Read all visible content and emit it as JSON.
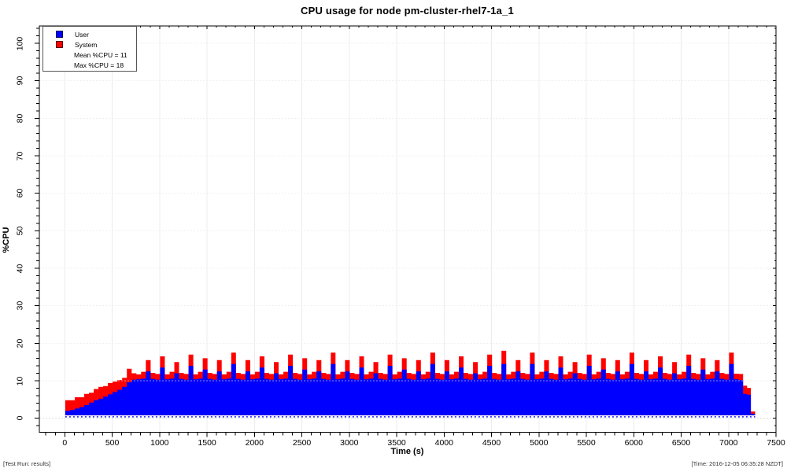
{
  "header": {
    "title": "CPU usage for node pm-cluster-rhel7-1a_1"
  },
  "legend": {
    "items": [
      {
        "label": "User",
        "color": "#0000ff"
      },
      {
        "label": "System",
        "color": "#ff0000"
      }
    ],
    "stats": [
      {
        "label": "Mean %CPU = 11"
      },
      {
        "label": "Max %CPU = 18"
      }
    ]
  },
  "footer": {
    "left": "[Test Run: results]",
    "right": "[Time: 2016-12-05 06:35:28 NZDT]"
  },
  "chart_data": {
    "type": "area",
    "stacked": true,
    "title": "CPU usage for node pm-cluster-rhel7-1a_1",
    "xlabel": "Time (s)",
    "ylabel": "%CPU",
    "xlim": [
      0,
      7500
    ],
    "ylim": [
      0,
      100
    ],
    "xticks": [
      0,
      500,
      1000,
      1500,
      2000,
      2500,
      3000,
      3500,
      4000,
      4500,
      5000,
      5500,
      6000,
      6500,
      7000,
      7500
    ],
    "yticks": [
      0,
      10,
      20,
      30,
      40,
      50,
      60,
      70,
      80,
      90,
      100
    ],
    "x_minor_step": 100,
    "y_minor_step": 2,
    "grid": true,
    "legend_position": "top-left",
    "mean_pct_cpu": 11,
    "max_pct_cpu": 18,
    "colors": {
      "user": "#0000ff",
      "system": "#ff0000",
      "grid": "#dddddd",
      "border": "#000000"
    },
    "series": [
      {
        "name": "User",
        "color": "#0000ff"
      },
      {
        "name": "System",
        "color": "#ff0000"
      }
    ],
    "points_format": [
      "time_s",
      "user_pct",
      "system_pct"
    ],
    "points": [
      [
        30,
        2,
        2.8
      ],
      [
        80,
        2.2,
        2.6
      ],
      [
        130,
        2.6,
        3
      ],
      [
        180,
        3,
        2.6
      ],
      [
        230,
        3.5,
        3
      ],
      [
        280,
        4.2,
        2.6
      ],
      [
        330,
        4.8,
        3
      ],
      [
        380,
        5.2,
        3.2
      ],
      [
        430,
        5.8,
        2.8
      ],
      [
        480,
        6.4,
        3
      ],
      [
        530,
        7,
        2.8
      ],
      [
        580,
        7.6,
        2.6
      ],
      [
        630,
        8.4,
        2.4
      ],
      [
        680,
        9.6,
        3.6
      ],
      [
        730,
        10.3,
        1.7
      ],
      [
        780,
        10.4,
        1.3
      ],
      [
        830,
        10.6,
        1.8
      ],
      [
        880,
        12.5,
        3
      ],
      [
        930,
        10.5,
        1.6
      ],
      [
        980,
        10.3,
        1.5
      ],
      [
        1030,
        13.5,
        3
      ],
      [
        1080,
        10.4,
        1.3
      ],
      [
        1130,
        10.6,
        1.8
      ],
      [
        1180,
        12,
        3
      ],
      [
        1230,
        10.5,
        1.6
      ],
      [
        1280,
        10.3,
        1.5
      ],
      [
        1330,
        14,
        3
      ],
      [
        1380,
        10.4,
        1.3
      ],
      [
        1430,
        10.6,
        1.8
      ],
      [
        1480,
        13,
        3
      ],
      [
        1530,
        10.5,
        1.6
      ],
      [
        1580,
        10.3,
        1.5
      ],
      [
        1630,
        12.5,
        3
      ],
      [
        1680,
        10.4,
        1.3
      ],
      [
        1730,
        10.6,
        1.8
      ],
      [
        1780,
        14.5,
        3
      ],
      [
        1830,
        10.5,
        1.6
      ],
      [
        1880,
        10.3,
        1.5
      ],
      [
        1930,
        12.5,
        3
      ],
      [
        1980,
        10.4,
        1.3
      ],
      [
        2030,
        10.6,
        1.8
      ],
      [
        2080,
        13.5,
        3
      ],
      [
        2130,
        10.5,
        1.6
      ],
      [
        2180,
        10.3,
        1.5
      ],
      [
        2230,
        12,
        3
      ],
      [
        2280,
        10.4,
        1.3
      ],
      [
        2330,
        10.6,
        1.8
      ],
      [
        2380,
        14,
        3
      ],
      [
        2430,
        10.5,
        1.6
      ],
      [
        2480,
        10.3,
        1.5
      ],
      [
        2530,
        13,
        3
      ],
      [
        2580,
        10.4,
        1.3
      ],
      [
        2630,
        10.6,
        1.8
      ],
      [
        2680,
        12.5,
        3
      ],
      [
        2730,
        10.5,
        1.6
      ],
      [
        2780,
        10.3,
        1.5
      ],
      [
        2830,
        14.5,
        3
      ],
      [
        2880,
        10.4,
        1.3
      ],
      [
        2930,
        10.6,
        1.8
      ],
      [
        2980,
        12.5,
        3
      ],
      [
        3030,
        10.5,
        1.6
      ],
      [
        3080,
        10.3,
        1.5
      ],
      [
        3130,
        13.5,
        3
      ],
      [
        3180,
        10.4,
        1.3
      ],
      [
        3230,
        10.6,
        1.8
      ],
      [
        3280,
        12,
        3
      ],
      [
        3330,
        10.5,
        1.6
      ],
      [
        3380,
        10.3,
        1.5
      ],
      [
        3430,
        14,
        3
      ],
      [
        3480,
        10.4,
        1.3
      ],
      [
        3530,
        10.6,
        1.8
      ],
      [
        3580,
        13,
        3
      ],
      [
        3630,
        10.5,
        1.6
      ],
      [
        3680,
        10.3,
        1.5
      ],
      [
        3730,
        12.5,
        3
      ],
      [
        3780,
        10.4,
        1.3
      ],
      [
        3830,
        10.6,
        1.8
      ],
      [
        3880,
        14.5,
        3
      ],
      [
        3930,
        10.5,
        1.6
      ],
      [
        3980,
        10.3,
        1.5
      ],
      [
        4030,
        12.5,
        3
      ],
      [
        4080,
        10.4,
        1.3
      ],
      [
        4130,
        10.6,
        1.8
      ],
      [
        4180,
        13.5,
        3
      ],
      [
        4230,
        10.5,
        1.6
      ],
      [
        4280,
        10.3,
        1.5
      ],
      [
        4330,
        12,
        3
      ],
      [
        4380,
        10.4,
        1.3
      ],
      [
        4430,
        10.6,
        1.8
      ],
      [
        4480,
        14,
        3
      ],
      [
        4530,
        10.5,
        1.6
      ],
      [
        4580,
        10.3,
        1.5
      ],
      [
        4630,
        14.5,
        3.5
      ],
      [
        4680,
        10.4,
        1.3
      ],
      [
        4730,
        10.6,
        1.8
      ],
      [
        4780,
        12.5,
        3
      ],
      [
        4830,
        10.5,
        1.6
      ],
      [
        4880,
        10.3,
        1.5
      ],
      [
        4930,
        14.5,
        3
      ],
      [
        4980,
        10.4,
        1.3
      ],
      [
        5030,
        10.6,
        1.8
      ],
      [
        5080,
        12.5,
        3
      ],
      [
        5130,
        10.5,
        1.6
      ],
      [
        5180,
        10.3,
        1.5
      ],
      [
        5230,
        13.5,
        3
      ],
      [
        5280,
        10.4,
        1.3
      ],
      [
        5330,
        10.6,
        1.8
      ],
      [
        5380,
        12,
        3
      ],
      [
        5430,
        10.5,
        1.6
      ],
      [
        5480,
        10.3,
        1.5
      ],
      [
        5530,
        14,
        3
      ],
      [
        5580,
        10.4,
        1.3
      ],
      [
        5630,
        10.6,
        1.8
      ],
      [
        5680,
        13,
        3
      ],
      [
        5730,
        10.5,
        1.6
      ],
      [
        5780,
        10.3,
        1.5
      ],
      [
        5830,
        12.5,
        3
      ],
      [
        5880,
        10.4,
        1.3
      ],
      [
        5930,
        10.6,
        1.8
      ],
      [
        5980,
        14.5,
        3
      ],
      [
        6030,
        10.5,
        1.6
      ],
      [
        6080,
        10.3,
        1.5
      ],
      [
        6130,
        12.5,
        3
      ],
      [
        6180,
        10.4,
        1.3
      ],
      [
        6230,
        10.6,
        1.8
      ],
      [
        6280,
        13.5,
        3
      ],
      [
        6330,
        10.5,
        1.6
      ],
      [
        6380,
        10.3,
        1.5
      ],
      [
        6430,
        12,
        3
      ],
      [
        6480,
        10.4,
        1.3
      ],
      [
        6530,
        10.6,
        1.8
      ],
      [
        6580,
        14,
        3
      ],
      [
        6630,
        10.5,
        1.6
      ],
      [
        6680,
        10.3,
        1.5
      ],
      [
        6730,
        13,
        3
      ],
      [
        6780,
        10.4,
        1.3
      ],
      [
        6830,
        10.6,
        1.8
      ],
      [
        6880,
        12.5,
        3
      ],
      [
        6930,
        10.5,
        1.6
      ],
      [
        6980,
        10.3,
        1.5
      ],
      [
        7030,
        14.5,
        3
      ],
      [
        7080,
        10.4,
        1.5
      ],
      [
        7130,
        10.2,
        1.6
      ],
      [
        7175,
        6.5,
        2.2
      ],
      [
        7215,
        6.3,
        1.8
      ],
      [
        7255,
        1.2,
        0.6
      ]
    ]
  }
}
